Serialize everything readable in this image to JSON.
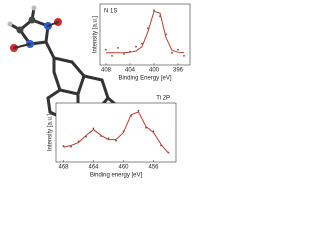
{
  "chart_data": [
    {
      "type": "line",
      "annotation": "N 1S",
      "x_label": "Binding Energy [eV]",
      "y_label": "Intensity [a.u.]",
      "x": [
        408,
        407,
        406,
        405,
        404,
        403,
        402,
        401,
        400,
        399,
        398,
        397,
        396,
        395
      ],
      "series": [
        {
          "style": "points",
          "color": "#555555",
          "values": [
            0.25,
            0.15,
            0.28,
            0.18,
            0.22,
            0.3,
            0.35,
            0.6,
            0.9,
            0.8,
            0.5,
            0.2,
            0.25,
            0.15
          ]
        },
        {
          "style": "line",
          "color": "#c0392b",
          "values": [
            0.2,
            0.2,
            0.2,
            0.2,
            0.21,
            0.23,
            0.3,
            0.55,
            0.88,
            0.85,
            0.45,
            0.24,
            0.21,
            0.2
          ]
        }
      ],
      "xlim": [
        409,
        394
      ],
      "ylim": [
        0,
        1
      ],
      "xticks": [
        408,
        404,
        400,
        396
      ]
    },
    {
      "type": "line",
      "annotation": "Ti 2P",
      "x_label": "Binding energy [eV]",
      "y_label": "Intensity [a.u.]",
      "x": [
        468,
        467,
        466,
        465,
        464,
        463,
        462,
        461,
        460,
        459,
        458,
        457,
        456,
        455,
        454
      ],
      "series": [
        {
          "style": "points",
          "color": "#555555",
          "values": [
            0.27,
            0.26,
            0.35,
            0.43,
            0.57,
            0.44,
            0.4,
            0.36,
            0.52,
            0.78,
            0.87,
            0.58,
            0.52,
            0.28,
            0.16
          ]
        },
        {
          "style": "line",
          "color": "#c0392b",
          "values": [
            0.25,
            0.28,
            0.33,
            0.45,
            0.55,
            0.45,
            0.38,
            0.38,
            0.5,
            0.8,
            0.85,
            0.6,
            0.5,
            0.3,
            0.15
          ]
        }
      ],
      "xlim": [
        469,
        453
      ],
      "ylim": [
        0,
        1
      ],
      "xticks": [
        468,
        464,
        460,
        456
      ]
    }
  ]
}
